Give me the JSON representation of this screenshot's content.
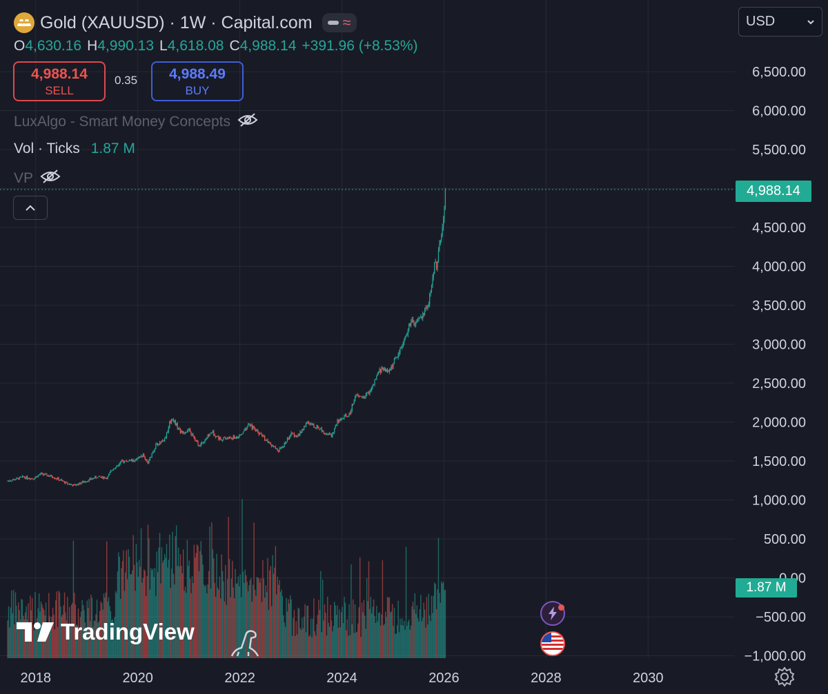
{
  "header": {
    "title": "Gold (XAUUSD) · 1W · Capital.com",
    "o_label": "O",
    "o_value": "4,630.16",
    "h_label": "H",
    "h_value": "4,990.13",
    "l_label": "L",
    "l_value": "4,618.08",
    "c_label": "C",
    "c_value": "4,988.14",
    "change": "+391.96 (+8.53%)"
  },
  "trade": {
    "sell_price": "4,988.14",
    "sell_label": "SELL",
    "spread": "0.35",
    "buy_price": "4,988.49",
    "buy_label": "BUY"
  },
  "indicators": {
    "smc": "LuxAlgo - Smart Money Concepts",
    "vol_label": "Vol · Ticks",
    "vol_value": "1.87 M",
    "vp": "VP"
  },
  "currency": {
    "selected": "USD"
  },
  "watermark": "TradingView",
  "colors": {
    "up": "#26a69a",
    "down": "#ef5350",
    "background": "#181b25",
    "grid": "#262a35",
    "tag": "#22ab94"
  },
  "chart_data": {
    "type": "candlestick",
    "timeframe": "1W",
    "last_price": 4988.14,
    "last_price_label": "4,988.14",
    "price_axis_ticks": [
      "6,500.00",
      "6,000.00",
      "5,500.00",
      "5,000.00",
      "4,500.00",
      "4,000.00",
      "3,500.00",
      "3,000.00",
      "2,500.00",
      "2,000.00",
      "1,500.00",
      "1,000.00",
      "500.00",
      "0.00",
      "−500.00",
      "−1,000.00"
    ],
    "x_axis_ticks": [
      "2018",
      "2020",
      "2022",
      "2024",
      "2026",
      "2028",
      "2030"
    ],
    "x_range": [
      2017.3,
      2031.7
    ],
    "price_keypoints": [
      [
        2017.45,
        1250
      ],
      [
        2017.6,
        1270
      ],
      [
        2017.75,
        1300
      ],
      [
        2017.95,
        1280
      ],
      [
        2018.1,
        1340
      ],
      [
        2018.35,
        1300
      ],
      [
        2018.6,
        1220
      ],
      [
        2018.75,
        1190
      ],
      [
        2018.95,
        1240
      ],
      [
        2019.2,
        1300
      ],
      [
        2019.4,
        1290
      ],
      [
        2019.5,
        1400
      ],
      [
        2019.7,
        1500
      ],
      [
        2019.95,
        1510
      ],
      [
        2020.1,
        1580
      ],
      [
        2020.2,
        1480
      ],
      [
        2020.35,
        1700
      ],
      [
        2020.55,
        1800
      ],
      [
        2020.62,
        2000
      ],
      [
        2020.68,
        2050
      ],
      [
        2020.85,
        1870
      ],
      [
        2021.0,
        1900
      ],
      [
        2021.2,
        1700
      ],
      [
        2021.35,
        1800
      ],
      [
        2021.45,
        1880
      ],
      [
        2021.6,
        1790
      ],
      [
        2021.8,
        1800
      ],
      [
        2022.0,
        1820
      ],
      [
        2022.18,
        1980
      ],
      [
        2022.3,
        1900
      ],
      [
        2022.45,
        1820
      ],
      [
        2022.6,
        1710
      ],
      [
        2022.75,
        1640
      ],
      [
        2022.85,
        1700
      ],
      [
        2023.0,
        1850
      ],
      [
        2023.15,
        1830
      ],
      [
        2023.3,
        1990
      ],
      [
        2023.4,
        1970
      ],
      [
        2023.55,
        1930
      ],
      [
        2023.7,
        1860
      ],
      [
        2023.8,
        1830
      ],
      [
        2023.9,
        2000
      ],
      [
        2024.0,
        2050
      ],
      [
        2024.15,
        2100
      ],
      [
        2024.25,
        2330
      ],
      [
        2024.45,
        2330
      ],
      [
        2024.6,
        2450
      ],
      [
        2024.72,
        2650
      ],
      [
        2024.82,
        2700
      ],
      [
        2024.9,
        2640
      ],
      [
        2025.0,
        2750
      ],
      [
        2025.12,
        2900
      ],
      [
        2025.25,
        3100
      ],
      [
        2025.35,
        3300
      ],
      [
        2025.42,
        3250
      ],
      [
        2025.52,
        3330
      ],
      [
        2025.6,
        3380
      ],
      [
        2025.7,
        3550
      ],
      [
        2025.78,
        3850
      ],
      [
        2025.82,
        4100
      ],
      [
        2025.86,
        4000
      ],
      [
        2025.9,
        4200
      ],
      [
        2025.95,
        4400
      ],
      [
        2026.0,
        4630
      ],
      [
        2026.03,
        4988
      ]
    ],
    "volume_axis_last_label": "1.87 M",
    "volume_current": 1870000
  }
}
